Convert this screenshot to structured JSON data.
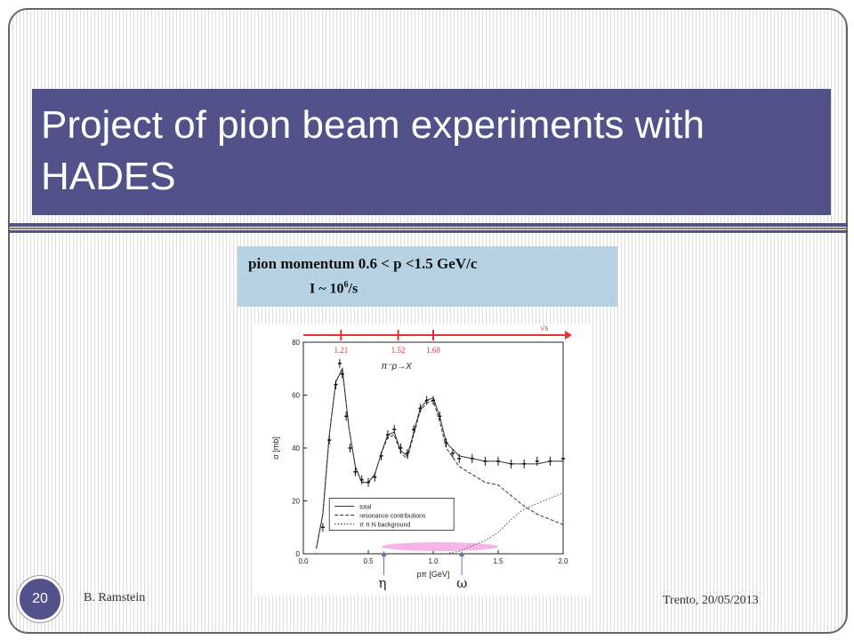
{
  "slide": {
    "title": "Project of pion beam experiments with HADES",
    "info_line1": "pion momentum 0.6 < p <1.5  GeV/c",
    "info_line2_prefix": "I ~ 10",
    "info_line2_exp": "6",
    "info_line2_suffix": "/s",
    "author": "B. Ramstein",
    "footer_right": "Trento, 20/05/2013",
    "page_number": "20"
  },
  "chart_data": {
    "type": "line",
    "title": "π⁻p→X",
    "xlabel": "pπ [GeV]",
    "ylabel": "σ [mb]",
    "xlim": [
      0.0,
      2.0
    ],
    "ylim": [
      0,
      80
    ],
    "xticks": [
      "0.0",
      "0.5",
      "1.0",
      "1.5",
      "2.0"
    ],
    "yticks": [
      "0",
      "20",
      "40",
      "60",
      "80"
    ],
    "top_axis_label": "√s",
    "top_axis_ticks": [
      {
        "label": "1.21",
        "x": 0.29
      },
      {
        "label": "1.52",
        "x": 0.73
      },
      {
        "label": "1.68",
        "x": 1.0
      }
    ],
    "markers": [
      {
        "label": "η",
        "x": 0.62
      },
      {
        "label": "ω",
        "x": 1.22
      }
    ],
    "highlight_range": [
      0.6,
      1.5
    ],
    "legend": [
      "total",
      "resonance contributions",
      "π π N background"
    ],
    "series": [
      {
        "name": "total",
        "x": [
          0.1,
          0.15,
          0.2,
          0.25,
          0.3,
          0.35,
          0.4,
          0.45,
          0.5,
          0.55,
          0.6,
          0.65,
          0.7,
          0.75,
          0.8,
          0.85,
          0.9,
          0.95,
          1.0,
          1.05,
          1.1,
          1.2,
          1.3,
          1.4,
          1.5,
          1.6,
          1.7,
          1.8,
          1.9,
          2.0
        ],
        "y": [
          2,
          15,
          45,
          65,
          70,
          48,
          33,
          27,
          27,
          30,
          38,
          45,
          46,
          39,
          37,
          46,
          55,
          58,
          59,
          52,
          42,
          37,
          36,
          35,
          35,
          34,
          34,
          34,
          35,
          35
        ]
      },
      {
        "name": "resonance contributions",
        "x": [
          0.1,
          0.15,
          0.2,
          0.25,
          0.3,
          0.35,
          0.4,
          0.45,
          0.5,
          0.55,
          0.6,
          0.65,
          0.7,
          0.75,
          0.8,
          0.85,
          0.9,
          0.95,
          1.0,
          1.05,
          1.1,
          1.2,
          1.3,
          1.4,
          1.5,
          1.6,
          1.7,
          1.8,
          1.9,
          2.0
        ],
        "y": [
          2,
          15,
          45,
          65,
          70,
          48,
          33,
          27,
          27,
          30,
          38,
          44,
          45,
          38,
          36,
          45,
          54,
          57,
          58,
          50,
          40,
          33,
          30,
          27,
          26,
          22,
          18,
          15,
          13,
          11
        ]
      },
      {
        "name": "π π N background",
        "x": [
          1.1,
          1.2,
          1.3,
          1.4,
          1.5,
          1.6,
          1.7,
          1.8,
          1.9,
          2.0
        ],
        "y": [
          0,
          1,
          3,
          5,
          8,
          13,
          17,
          19,
          21,
          23
        ]
      },
      {
        "name": "data",
        "x": [
          0.15,
          0.2,
          0.25,
          0.28,
          0.3,
          0.33,
          0.36,
          0.4,
          0.45,
          0.5,
          0.55,
          0.6,
          0.65,
          0.7,
          0.75,
          0.8,
          0.85,
          0.9,
          0.95,
          1.0,
          1.05,
          1.1,
          1.15,
          1.2,
          1.3,
          1.4,
          1.5,
          1.6,
          1.7,
          1.8,
          1.9,
          2.0
        ],
        "y": [
          10,
          43,
          64,
          72,
          68,
          52,
          40,
          31,
          28,
          27,
          29,
          37,
          45,
          47,
          40,
          38,
          47,
          55,
          58,
          58,
          52,
          42,
          38,
          36,
          36,
          35,
          35,
          34,
          34,
          35,
          35,
          36
        ]
      }
    ]
  },
  "colors": {
    "title_bg": "#52518a",
    "info_bg": "#b7d3e3",
    "top_axis": "#e83030",
    "marker": "#5b6dd6",
    "highlight": "#f4a7e4"
  }
}
